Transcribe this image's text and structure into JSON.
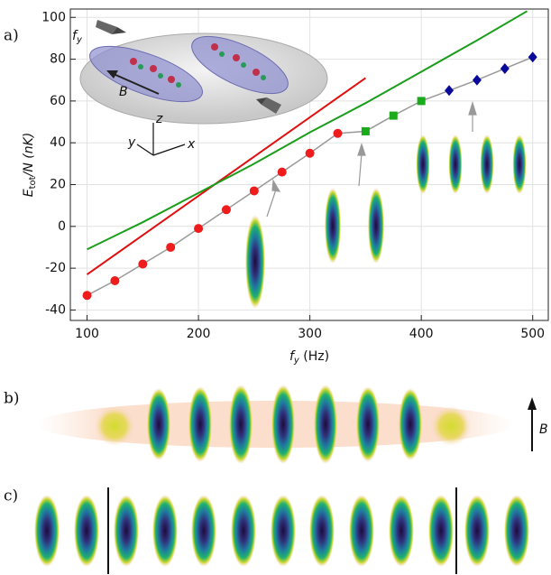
{
  "chart_data": {
    "type": "line",
    "panel_labels": [
      "a)",
      "b)",
      "c)"
    ],
    "x_label": {
      "main": "f",
      "sub": "y",
      "rest": " (Hz)"
    },
    "y_label": {
      "main": "E",
      "sub": "tot",
      "rest": "/N (nK)"
    },
    "inset_labels": {
      "f": "f",
      "f_sub": "y",
      "B": "B",
      "x": "x",
      "y": "y",
      "z": "z"
    },
    "panel_b_label": "B",
    "xlim": [
      85,
      514
    ],
    "xticks": [
      100,
      200,
      300,
      400,
      500
    ],
    "ylim": [
      -45,
      104
    ],
    "yticks": [
      -40,
      -20,
      0,
      20,
      40,
      60,
      80,
      100
    ],
    "grid": true,
    "connector_color": "#999999",
    "series": [
      {
        "kind": "line",
        "color": "#e01010",
        "x": [
          100,
          350
        ],
        "values": [
          -23,
          71
        ]
      },
      {
        "kind": "line",
        "color": "#1a9e1a",
        "x": [
          100,
          150,
          200,
          250,
          300,
          350,
          400,
          450,
          495
        ],
        "values": [
          -11,
          2,
          16,
          30,
          45,
          59,
          74,
          89,
          103
        ]
      },
      {
        "kind": "marker",
        "marker": "circle",
        "color": "#ee1c1c",
        "x": [
          100,
          125,
          150,
          175,
          200,
          225,
          250,
          275,
          300,
          325
        ],
        "values": [
          -33,
          -26,
          -18,
          -10,
          -1,
          8,
          17,
          26,
          35,
          44.5
        ]
      },
      {
        "kind": "marker",
        "marker": "square",
        "color": "#1aab1a",
        "x": [
          350,
          375,
          400
        ],
        "values": [
          45.5,
          53,
          60
        ]
      },
      {
        "kind": "marker",
        "marker": "diamond",
        "color": "#0a0a9a",
        "x": [
          425,
          450,
          475,
          500
        ],
        "values": [
          65,
          70,
          75.5,
          81
        ]
      }
    ]
  }
}
